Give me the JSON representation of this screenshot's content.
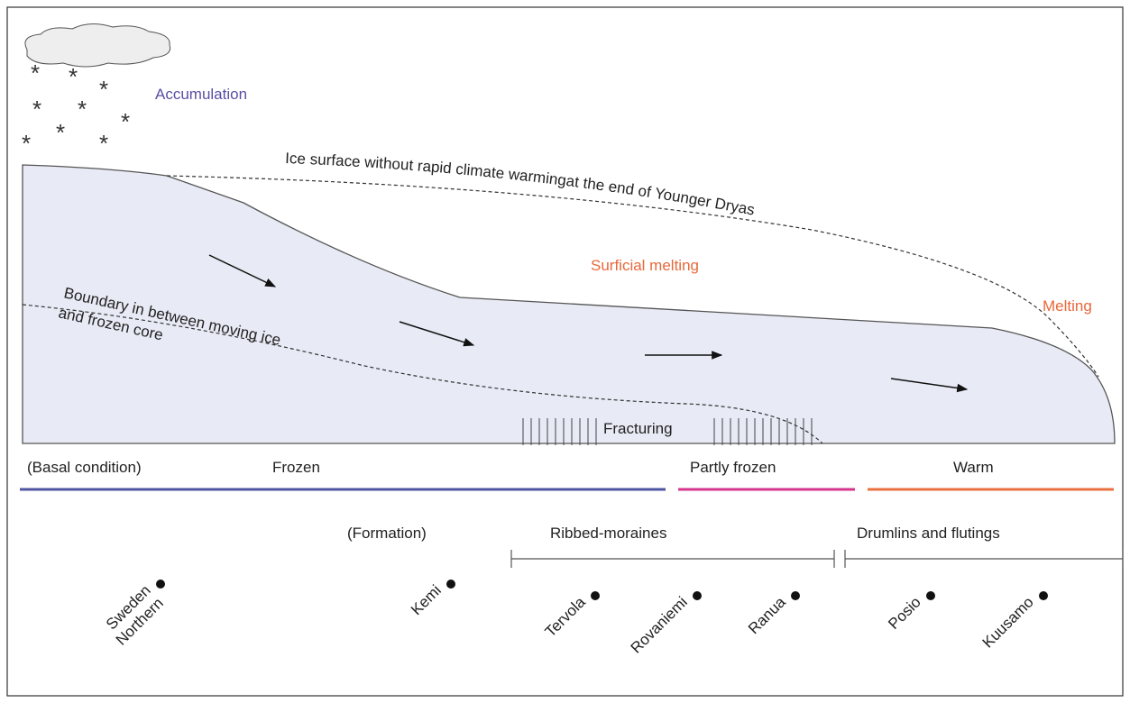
{
  "labels": {
    "accumulation": "Accumulation",
    "ice_surface": "Ice surface without rapid climate warmingat the end of Younger Dryas",
    "surficial_melting": "Surficial melting",
    "melting": "Melting",
    "boundary": [
      "Boundary in between moving ice",
      "and frozen core"
    ],
    "fracturing": "Fracturing"
  },
  "basal_condition": {
    "title": "(Basal condition)",
    "zones": [
      "Frozen",
      "Partly frozen",
      "Warm"
    ]
  },
  "formation": {
    "title": "(Formation)",
    "zones": [
      "Ribbed-moraines",
      "Drumlins and flutings"
    ]
  },
  "locations": [
    [
      "Northern",
      "Sweden"
    ],
    [
      "Kemi"
    ],
    [
      "Tervola"
    ],
    [
      "Rovaniemi"
    ],
    [
      "Ranua"
    ],
    [
      "Posio"
    ],
    [
      "Kuusamo"
    ]
  ]
}
